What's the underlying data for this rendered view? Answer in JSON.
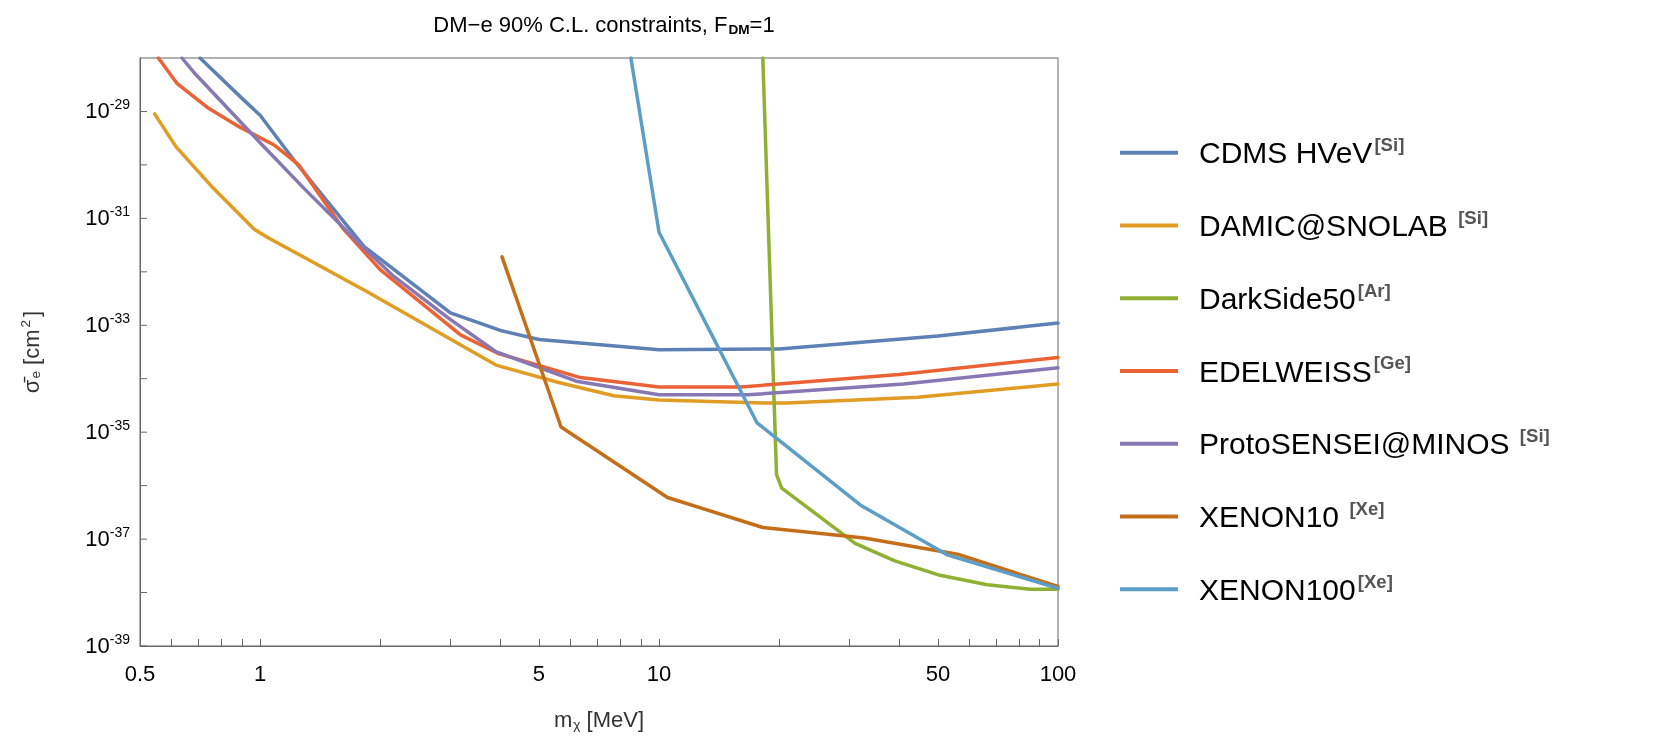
{
  "chart_data": {
    "type": "line",
    "title": "DM−e 90% C.L. constraints, F$_{DM}$=1",
    "xlabel": "m$_{χ}$ [MeV]",
    "ylabel": "σ̄$_{e}$ [cm$^{2}$]",
    "log": "xy",
    "grid": false,
    "legend": "right",
    "marker": "none",
    "line_style": "solid",
    "xlim": [
      0.5,
      100
    ],
    "ylim": [
      1e-39,
      1e-28
    ],
    "xticks": [
      0.5,
      {
        "value": 0.6,
        "label": null
      },
      {
        "value": 0.7,
        "label": null
      },
      {
        "value": 0.8,
        "label": null
      },
      {
        "value": 0.9,
        "label": null
      },
      1,
      {
        "value": 2,
        "label": null
      },
      {
        "value": 3,
        "label": null
      },
      {
        "value": 4,
        "label": null
      },
      5,
      {
        "value": 6,
        "label": null
      },
      {
        "value": 7,
        "label": null
      },
      {
        "value": 8,
        "label": null
      },
      {
        "value": 9,
        "label": null
      },
      10,
      {
        "value": 20,
        "label": null
      },
      {
        "value": 30,
        "label": null
      },
      {
        "value": 40,
        "label": null
      },
      50,
      {
        "value": 60,
        "label": null
      },
      {
        "value": 70,
        "label": null
      },
      {
        "value": 80,
        "label": null
      },
      {
        "value": 90,
        "label": null
      },
      100
    ],
    "yticks": [
      {
        "value": 1e-39,
        "label": "10$^{-39}$"
      },
      {
        "value": 1e-38,
        "label": null
      },
      {
        "value": 1e-37,
        "label": "10$^{-37}$"
      },
      {
        "value": 1e-36,
        "label": null
      },
      {
        "value": 1e-35,
        "label": "10$^{-35}$"
      },
      {
        "value": 1e-34,
        "label": null
      },
      {
        "value": 1e-33,
        "label": "10$^{-33}$"
      },
      {
        "value": 1e-32,
        "label": null
      },
      {
        "value": 1e-31,
        "label": "10$^{-31}$"
      },
      {
        "value": 1e-30,
        "label": null
      },
      {
        "value": 1e-29,
        "label": "10$^{-29}$"
      }
    ],
    "series": [
      {
        "name": "CDMS HVeV$^{[Si]}$",
        "color": "#5e81b5",
        "x": [
          0.707,
          0.905,
          1,
          1.23,
          1.82,
          3,
          4,
          5,
          10,
          20,
          50,
          100
        ],
        "values": [
          1e-28,
          1.7e-29,
          8.5e-30,
          1.1e-30,
          3e-32,
          1.7e-33,
          8e-34,
          5.4e-34,
          3.5e-34,
          3.6e-34,
          6.3e-34,
          1.1e-33
        ]
      },
      {
        "name": "DAMIC@SNOLAB $^{[Si]}$",
        "color": "#e19c24",
        "x": [
          0.544,
          0.615,
          0.755,
          0.965,
          1.05,
          1.86,
          3.9,
          5.6,
          7.7,
          10,
          18.8,
          20.9,
          44.5,
          100
        ],
        "values": [
          9e-30,
          2.2e-30,
          4e-31,
          6.3e-32,
          4.3e-32,
          4.2e-33,
          1.8e-34,
          8.5e-35,
          4.8e-35,
          4e-35,
          3.5e-35,
          3.5e-35,
          4.5e-35,
          8e-35
        ]
      },
      {
        "name": "DarkSide50$^{[Ar]}$",
        "color": "#8fb032",
        "x": [
          18.2,
          19.7,
          20.3,
          31,
          39,
          50.6,
          66.5,
          85,
          100
        ],
        "values": [
          1e-28,
          1.6e-36,
          9e-37,
          8.3e-38,
          3.9e-38,
          2.1e-38,
          1.4e-38,
          1.15e-38,
          1.15e-38
        ]
      },
      {
        "name": "EDELWEISS$^{[Ge]}$",
        "color": "#eb6235",
        "x": [
          0.556,
          0.62,
          0.736,
          0.885,
          1.09,
          1.25,
          1.61,
          2,
          3.18,
          3.94,
          6.35,
          10,
          16,
          40,
          100
        ],
        "values": [
          1e-28,
          3.3e-29,
          1.2e-29,
          5.2e-30,
          2.3e-30,
          1e-30,
          6.6e-32,
          1.1e-32,
          6.6e-34,
          3e-34,
          1.05e-34,
          7e-35,
          7e-35,
          1.2e-34,
          2.5e-34
        ]
      },
      {
        "name": "ProtoSENSEI@MINOS $^{[Si]}$",
        "color": "#8778b3",
        "x": [
          0.637,
          0.69,
          1,
          1.29,
          1.82,
          2.16,
          2.99,
          3.9,
          6.2,
          10,
          16.7,
          41,
          100
        ],
        "values": [
          1e-28,
          4.9e-29,
          2.6e-30,
          3.6e-31,
          2.8e-32,
          8.3e-33,
          1.3e-33,
          3.2e-34,
          9e-35,
          5e-35,
          5e-35,
          8e-35,
          1.6e-34
        ]
      },
      {
        "name": "XENON10 $^{[Xe]}$",
        "color": "#c56e1a",
        "x": [
          4.04,
          5.68,
          10.5,
          18.2,
          32.7,
          56,
          100
        ],
        "values": [
          1.9e-32,
          1.25e-35,
          6e-37,
          1.65e-37,
          1.05e-37,
          5.2e-38,
          1.3e-38
        ]
      },
      {
        "name": "XENON100$^{[Xe]}$",
        "color": "#5d9ec7",
        "x": [
          8.5,
          10,
          17.6,
          32,
          53,
          100
        ],
        "values": [
          1e-28,
          5.5e-32,
          1.5e-35,
          4.3e-37,
          5e-38,
          1.2e-38
        ]
      }
    ]
  }
}
